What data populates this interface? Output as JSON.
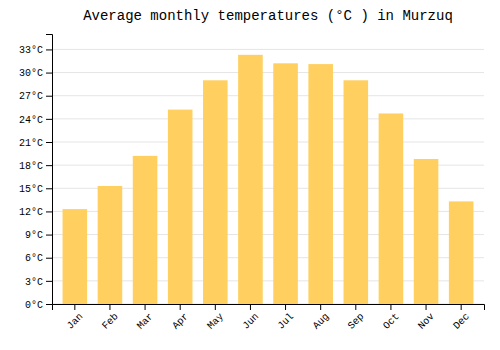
{
  "chart_data": {
    "type": "bar",
    "title": "Average monthly temperatures (°C ) in Murzuq",
    "categories": [
      "Jan",
      "Feb",
      "Mar",
      "Apr",
      "May",
      "Jun",
      "Jul",
      "Aug",
      "Sep",
      "Oct",
      "Nov",
      "Dec"
    ],
    "values": [
      12.3,
      15.3,
      19.2,
      25.2,
      29.0,
      32.3,
      31.2,
      31.1,
      29.0,
      24.7,
      18.8,
      13.3
    ],
    "color": "#FFD060",
    "ylim": [
      0,
      35
    ],
    "yticks": [
      {
        "value": 0,
        "label": "0°C"
      },
      {
        "value": 3,
        "label": "3°C"
      },
      {
        "value": 6,
        "label": "6°C"
      },
      {
        "value": 9,
        "label": "9°C"
      },
      {
        "value": 12,
        "label": "12°C"
      },
      {
        "value": 15,
        "label": "15°C"
      },
      {
        "value": 18,
        "label": "18°C"
      },
      {
        "value": 21,
        "label": "21°C"
      },
      {
        "value": 24,
        "label": "24°C"
      },
      {
        "value": 27,
        "label": "27°C"
      },
      {
        "value": 30,
        "label": "30°C"
      },
      {
        "value": 33,
        "label": "33°C"
      }
    ],
    "grid": true
  }
}
